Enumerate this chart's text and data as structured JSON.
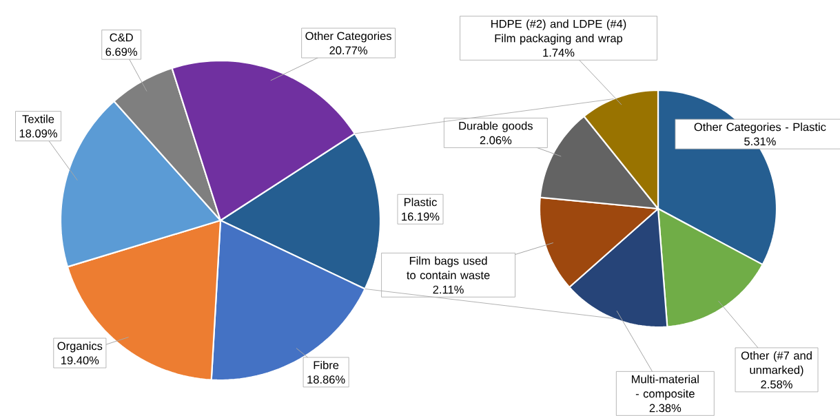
{
  "chart_data": [
    {
      "type": "pie",
      "categories": [
        "Plastic",
        "Fibre",
        "Organics",
        "Textile",
        "C&D",
        "Other Categories"
      ],
      "values": [
        16.19,
        18.86,
        19.4,
        18.09,
        6.69,
        20.77
      ],
      "value_labels": [
        "16.19%",
        "18.86%",
        "19.40%",
        "18.09%",
        "6.69%",
        "20.77%"
      ],
      "colors": [
        "#255e91",
        "#4472c4",
        "#ed7d31",
        "#5b9bd5",
        "#7f7f7f",
        "#7030a0"
      ]
    },
    {
      "type": "pie",
      "categories": [
        "Other Categories - Plastic",
        "Other (#7 and unmarked)",
        "Multi-material - composite",
        "Film bags used to contain waste",
        "Durable goods",
        "HDPE (#2) and LDPE (#4) Film packaging and wrap"
      ],
      "values": [
        5.31,
        2.58,
        2.38,
        2.11,
        2.06,
        1.74
      ],
      "value_labels": [
        "5.31%",
        "2.58%",
        "2.38%",
        "2.11%",
        "2.06%",
        "1.74%"
      ],
      "colors": [
        "#255e91",
        "#70ad47",
        "#264478",
        "#9e480e",
        "#636363",
        "#997300"
      ]
    }
  ]
}
